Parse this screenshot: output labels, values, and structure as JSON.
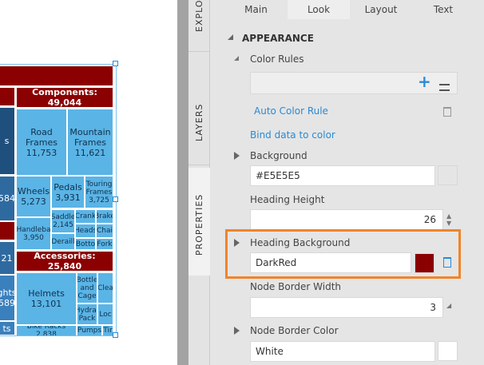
{
  "treemap": {
    "top_left": [
      {
        "text": "s"
      },
      {
        "text": "584"
      },
      {
        "text": "21"
      },
      {
        "text": "ghts"
      },
      {
        "text": "589"
      },
      {
        "text": "ts"
      }
    ],
    "components": {
      "header": "Components: 49,044",
      "cells": [
        {
          "name": "Road Frames",
          "value": "11,753"
        },
        {
          "name": "Mountain Frames",
          "value": "11,621"
        },
        {
          "name": "Wheels",
          "value": "5,273"
        },
        {
          "name": "Pedals",
          "value": "3,931"
        },
        {
          "name": "Touring Frames",
          "value": "3,725"
        },
        {
          "name": "Handleba",
          "value": "3,950"
        },
        {
          "name": "Saddle",
          "value": "2,145"
        },
        {
          "name": "Crank",
          "value": null
        },
        {
          "name": "Brake",
          "value": null
        },
        {
          "name": "Heads",
          "value": null
        },
        {
          "name": "Chai",
          "value": null
        },
        {
          "name": "Deraill",
          "value": null
        },
        {
          "name": "Botto",
          "value": null
        },
        {
          "name": "Fork",
          "value": null
        }
      ]
    },
    "accessories": {
      "header": "Accessories: 25,840",
      "cells": [
        {
          "name": "Helmets",
          "value": "13,101"
        },
        {
          "name": "Bottle and Cage",
          "value": null
        },
        {
          "name": "Clea",
          "value": null
        },
        {
          "name": "Hydrat Pack",
          "value": null
        },
        {
          "name": "Loc",
          "value": null
        },
        {
          "name": "Bike Racks 2,838",
          "value": null
        },
        {
          "name": "Pumps",
          "value": null
        },
        {
          "name": "Tir",
          "value": null
        }
      ]
    }
  },
  "side_tabs": [
    "EXPLO",
    "LAYERS",
    "PROPERTIES"
  ],
  "tabs": [
    "Main",
    "Look",
    "Layout",
    "Text"
  ],
  "panel": {
    "section": "APPEARANCE",
    "color_rules": "Color Rules",
    "add": "+",
    "auto_color_rule": "Auto Color Rule",
    "bind_data": "Bind data to color",
    "background": {
      "label": "Background",
      "value": "#E5E5E5"
    },
    "heading_height": {
      "label": "Heading Height",
      "value": "26"
    },
    "heading_background": {
      "label": "Heading Background",
      "value": "DarkRed"
    },
    "node_border_width": {
      "label": "Node Border Width",
      "value": "3"
    },
    "node_border_color": {
      "label": "Node Border Color",
      "value": "White"
    }
  }
}
